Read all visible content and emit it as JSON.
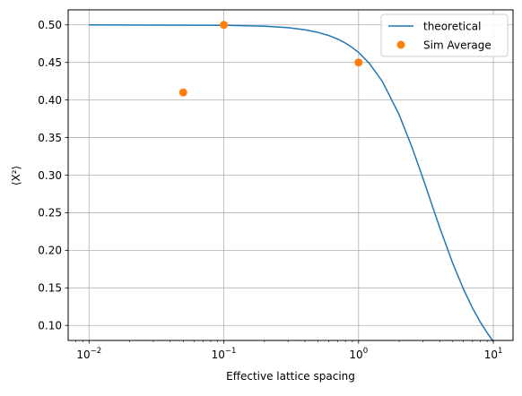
{
  "chart_data": {
    "type": "line",
    "title": "",
    "xlabel": "Effective lattice spacing",
    "ylabel": "⟨X²⟩",
    "xscale": "log",
    "xlim": [
      0.007,
      14
    ],
    "ylim": [
      0.08,
      0.52
    ],
    "grid": true,
    "legend_position": "top-right",
    "x_ticks": [
      {
        "value": 0.01,
        "base": "10",
        "exp": "−2"
      },
      {
        "value": 0.1,
        "base": "10",
        "exp": "−1"
      },
      {
        "value": 1,
        "base": "10",
        "exp": "0"
      },
      {
        "value": 10,
        "base": "10",
        "exp": "1"
      }
    ],
    "y_ticks": [
      {
        "value": 0.1,
        "label": "0.10"
      },
      {
        "value": 0.15,
        "label": "0.15"
      },
      {
        "value": 0.2,
        "label": "0.20"
      },
      {
        "value": 0.25,
        "label": "0.25"
      },
      {
        "value": 0.3,
        "label": "0.30"
      },
      {
        "value": 0.35,
        "label": "0.35"
      },
      {
        "value": 0.4,
        "label": "0.40"
      },
      {
        "value": 0.45,
        "label": "0.45"
      },
      {
        "value": 0.5,
        "label": "0.50"
      }
    ],
    "series": [
      {
        "name": "theoretical",
        "kind": "line",
        "color": "#1f77b4",
        "x": [
          0.01,
          0.1,
          0.2,
          0.3,
          0.4,
          0.5,
          0.6,
          0.7,
          0.8,
          0.9,
          1.0,
          1.2,
          1.5,
          2.0,
          2.5,
          3.0,
          4.0,
          5.0,
          6.0,
          7.0,
          8.0,
          9.0,
          10.0
        ],
        "y": [
          0.5,
          0.4995,
          0.4983,
          0.4963,
          0.4935,
          0.49,
          0.4859,
          0.4811,
          0.4757,
          0.4697,
          0.4633,
          0.449,
          0.4248,
          0.3804,
          0.3364,
          0.2961,
          0.2302,
          0.1826,
          0.1484,
          0.1233,
          0.1045,
          0.0901,
          0.0788
        ]
      },
      {
        "name": "Sim Average",
        "kind": "scatter",
        "color": "#ff7f0e",
        "x": [
          0.05,
          0.1,
          1.0
        ],
        "y": [
          0.41,
          0.5,
          0.45
        ]
      }
    ]
  }
}
